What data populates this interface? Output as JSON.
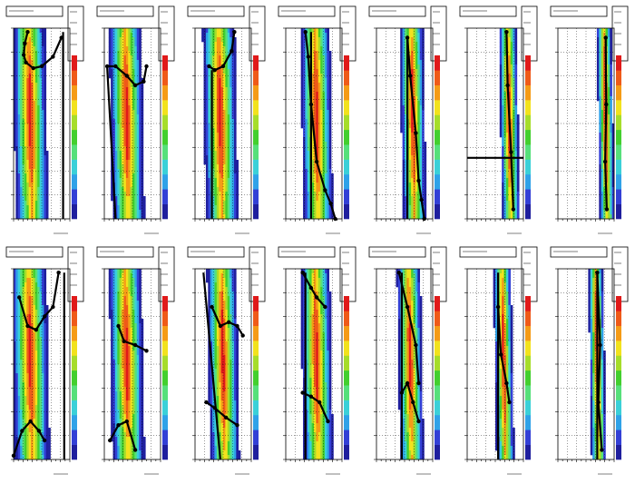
{
  "figure": {
    "grid_rows": 2,
    "grid_cols": 7,
    "footer_note": ""
  },
  "colors": {
    "background": "#ffffff",
    "frame": "#000000",
    "grid": "#000000",
    "palette": [
      "#ffffff",
      "#1f1f9e",
      "#3340d6",
      "#2fa2e8",
      "#3ad0d8",
      "#56e07a",
      "#43cf2e",
      "#a6dd2a",
      "#f2e21d",
      "#f59b16",
      "#ef5a18",
      "#e01a1a"
    ],
    "marker": "#000000"
  },
  "chart_data": [
    {
      "type": "heatmap",
      "row": 0,
      "col": 0,
      "band_center": 0.3,
      "band_width": 0.55,
      "overlay": {
        "kind": "curve",
        "x": [
          0.25,
          0.2,
          0.18,
          0.22,
          0.35,
          0.5,
          0.7,
          0.85
        ],
        "y": [
          0.98,
          0.92,
          0.86,
          0.82,
          0.79,
          0.8,
          0.85,
          0.95
        ],
        "vertical": {
          "x": 0.88,
          "y0": 0.0,
          "y1": 0.98
        }
      }
    },
    {
      "type": "heatmap",
      "row": 0,
      "col": 1,
      "band_center": 0.4,
      "band_width": 0.55,
      "overlay": {
        "kind": "curve",
        "x": [
          0.05,
          0.2,
          0.4,
          0.55,
          0.7,
          0.75
        ],
        "y": [
          0.8,
          0.8,
          0.75,
          0.7,
          0.72,
          0.8
        ],
        "diag": {
          "x0": 0.05,
          "y0": 0.8,
          "x1": 0.2,
          "y1": 0.0
        }
      }
    },
    {
      "type": "heatmap",
      "row": 0,
      "col": 2,
      "band_center": 0.45,
      "band_width": 0.55,
      "overlay": {
        "kind": "curve",
        "x": [
          0.25,
          0.35,
          0.5,
          0.65,
          0.7
        ],
        "y": [
          0.8,
          0.78,
          0.8,
          0.88,
          0.98
        ],
        "vertical": {
          "x": 0.3,
          "y0": 0.0,
          "y1": 0.78
        }
      }
    },
    {
      "type": "heatmap",
      "row": 0,
      "col": 3,
      "band_center": 0.55,
      "band_width": 0.5,
      "overlay": {
        "kind": "curve",
        "x": [
          0.35,
          0.4,
          0.45,
          0.55,
          0.7,
          0.8,
          0.88
        ],
        "y": [
          0.98,
          0.85,
          0.6,
          0.3,
          0.15,
          0.08,
          0.0
        ],
        "vertical": {
          "x": 0.45,
          "y0": 0.0,
          "y1": 0.98
        }
      }
    },
    {
      "type": "heatmap",
      "row": 0,
      "col": 4,
      "band_center": 0.65,
      "band_width": 0.4,
      "overlay": {
        "kind": "curve",
        "x": [
          0.55,
          0.6,
          0.7,
          0.75,
          0.8,
          0.85
        ],
        "y": [
          0.95,
          0.75,
          0.45,
          0.2,
          0.1,
          0.0
        ],
        "vertical": {
          "x": 0.55,
          "y0": 0.0,
          "y1": 0.95
        }
      }
    },
    {
      "type": "heatmap",
      "row": 0,
      "col": 5,
      "band_center": 0.75,
      "band_width": 0.3,
      "overlay": {
        "kind": "curve",
        "x": [
          0.7,
          0.72,
          0.78,
          0.82
        ],
        "y": [
          0.98,
          0.7,
          0.35,
          0.05
        ],
        "horizontal": {
          "y": 0.32
        }
      }
    },
    {
      "type": "heatmap",
      "row": 0,
      "col": 6,
      "band_center": 0.85,
      "band_width": 0.25,
      "overlay": {
        "kind": "curve",
        "x": [
          0.85,
          0.86,
          0.84,
          0.87
        ],
        "y": [
          0.95,
          0.6,
          0.3,
          0.05
        ]
      }
    },
    {
      "type": "heatmap",
      "row": 1,
      "col": 0,
      "band_center": 0.3,
      "band_width": 0.6,
      "overlay": {
        "kind": "curve",
        "x": [
          0.1,
          0.25,
          0.4,
          0.55,
          0.7,
          0.8
        ],
        "y": [
          0.85,
          0.7,
          0.68,
          0.75,
          0.8,
          0.98
        ],
        "low": {
          "x": [
            0.0,
            0.15,
            0.3,
            0.45,
            0.55
          ],
          "y": [
            0.02,
            0.15,
            0.2,
            0.15,
            0.1
          ]
        },
        "vertical": {
          "x": 0.9,
          "y0": 0.0,
          "y1": 0.98
        }
      }
    },
    {
      "type": "heatmap",
      "row": 1,
      "col": 1,
      "band_center": 0.4,
      "band_width": 0.55,
      "overlay": {
        "kind": "curve",
        "x": [
          0.25,
          0.35,
          0.55,
          0.75
        ],
        "y": [
          0.7,
          0.62,
          0.6,
          0.57
        ],
        "low": {
          "x": [
            0.1,
            0.25,
            0.4,
            0.55
          ],
          "y": [
            0.1,
            0.18,
            0.2,
            0.05
          ]
        }
      }
    },
    {
      "type": "heatmap",
      "row": 1,
      "col": 2,
      "band_center": 0.5,
      "band_width": 0.5,
      "overlay": {
        "kind": "curve",
        "x": [
          0.3,
          0.45,
          0.6,
          0.75,
          0.85
        ],
        "y": [
          0.8,
          0.7,
          0.72,
          0.7,
          0.65
        ],
        "low": {
          "x": [
            0.2,
            0.35,
            0.55,
            0.75
          ],
          "y": [
            0.3,
            0.27,
            0.22,
            0.18
          ]
        },
        "diag": {
          "x0": 0.15,
          "y0": 0.98,
          "x1": 0.45,
          "y1": 0.0
        }
      }
    },
    {
      "type": "heatmap",
      "row": 1,
      "col": 3,
      "band_center": 0.55,
      "band_width": 0.5,
      "overlay": {
        "kind": "curve",
        "x": [
          0.3,
          0.45,
          0.55,
          0.7
        ],
        "y": [
          0.98,
          0.9,
          0.85,
          0.8
        ],
        "low": {
          "x": [
            0.3,
            0.45,
            0.6,
            0.75
          ],
          "y": [
            0.35,
            0.33,
            0.3,
            0.2
          ]
        },
        "vertical": {
          "x": 0.35,
          "y0": 0.0,
          "y1": 0.98
        }
      }
    },
    {
      "type": "heatmap",
      "row": 1,
      "col": 4,
      "band_center": 0.6,
      "band_width": 0.4,
      "overlay": {
        "kind": "curve",
        "x": [
          0.4,
          0.55,
          0.7,
          0.75
        ],
        "y": [
          0.98,
          0.8,
          0.6,
          0.4
        ],
        "low": {
          "x": [
            0.45,
            0.55,
            0.65,
            0.75
          ],
          "y": [
            0.35,
            0.4,
            0.3,
            0.2
          ]
        },
        "vertical": {
          "x": 0.45,
          "y0": 0.0,
          "y1": 0.98
        }
      }
    },
    {
      "type": "heatmap",
      "row": 1,
      "col": 5,
      "band_center": 0.65,
      "band_width": 0.3,
      "overlay": {
        "kind": "curve",
        "x": [
          0.55,
          0.6,
          0.7,
          0.75
        ],
        "y": [
          0.8,
          0.55,
          0.4,
          0.3
        ],
        "vertical": {
          "x": 0.55,
          "y0": 0.0,
          "y1": 0.98
        }
      }
    },
    {
      "type": "heatmap",
      "row": 1,
      "col": 6,
      "band_center": 0.7,
      "band_width": 0.25,
      "overlay": {
        "kind": "curve",
        "x": [
          0.7,
          0.75,
          0.72,
          0.78
        ],
        "y": [
          0.98,
          0.6,
          0.3,
          0.05
        ],
        "vertical": {
          "x": 0.7,
          "y0": 0.0,
          "y1": 0.98
        }
      }
    }
  ]
}
